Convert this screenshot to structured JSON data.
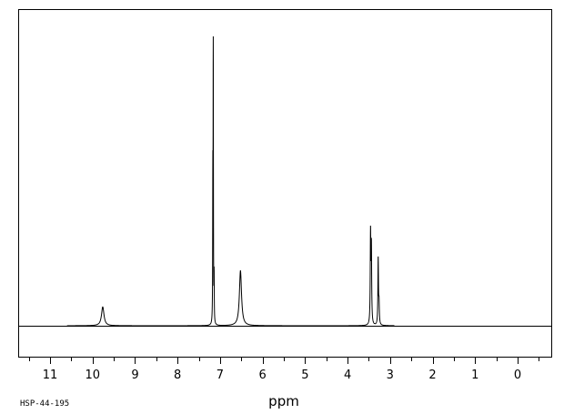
{
  "chart_data": {
    "type": "line",
    "title": "",
    "xlabel": "ppm",
    "ylabel": "",
    "x_reversed": true,
    "xlim": [
      12.0,
      -0.8
    ],
    "ylim": [
      0,
      1
    ],
    "baseline": 0,
    "grid": false,
    "tick_labels": [
      "11",
      "10",
      "9",
      "8",
      "7",
      "6",
      "5",
      "4",
      "3",
      "2",
      "1",
      "0"
    ],
    "tick_values": [
      11,
      10,
      9,
      8,
      7,
      6,
      5,
      4,
      3,
      2,
      1,
      0
    ],
    "minor_tick_step": 0.5,
    "peaks": [
      {
        "ppm": 9.76,
        "height": 0.065,
        "width": 0.035
      },
      {
        "ppm": 7.16,
        "height": 1.0,
        "width": 0.004
      },
      {
        "ppm": 7.17,
        "height": 0.46,
        "width": 0.004
      },
      {
        "ppm": 7.14,
        "height": 0.16,
        "width": 0.004
      },
      {
        "ppm": 6.52,
        "height": 0.19,
        "width": 0.03
      },
      {
        "ppm": 3.46,
        "height": 0.31,
        "width": 0.008
      },
      {
        "ppm": 3.44,
        "height": 0.26,
        "width": 0.008
      },
      {
        "ppm": 3.28,
        "height": 0.23,
        "width": 0.008
      },
      {
        "ppm": 3.26,
        "height": 0.07,
        "width": 0.008
      }
    ]
  },
  "footer": {
    "spectrum_id": "HSP-44-195"
  }
}
